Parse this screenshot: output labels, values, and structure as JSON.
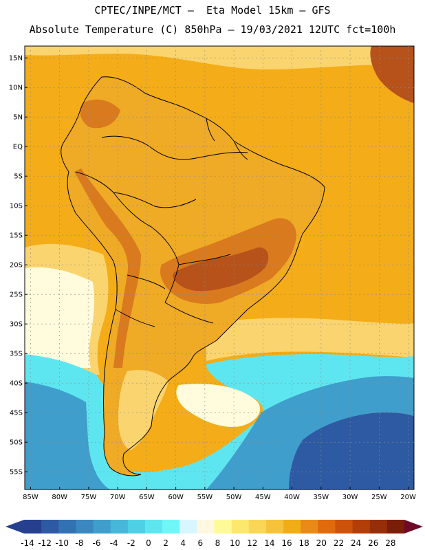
{
  "header": {
    "line1": "CPTEC/INPE/MCT –  Eta Model 15km – GFS",
    "line2": "Absolute Temperature (C) 850hPa – 19/03/2021 12UTC fct=100h"
  },
  "map": {
    "region": "South America",
    "lat_ticks": [
      "15N",
      "10N",
      "5N",
      "EQ",
      "5S",
      "10S",
      "15S",
      "20S",
      "25S",
      "30S",
      "35S",
      "40S",
      "45S",
      "50S",
      "55S"
    ],
    "lon_ticks": [
      "85W",
      "80W",
      "75W",
      "70W",
      "65W",
      "60W",
      "55W",
      "50W",
      "45W",
      "40W",
      "35W",
      "30W",
      "25W",
      "20W"
    ],
    "extent": {
      "lon_min": -86,
      "lon_max": -19,
      "lat_min": -58,
      "lat_max": 17
    }
  },
  "colorbar": {
    "labels": [
      "-14",
      "-12",
      "-10",
      "-8",
      "-6",
      "-4",
      "-2",
      "0",
      "2",
      "4",
      "6",
      "8",
      "10",
      "12",
      "14",
      "16",
      "18",
      "20",
      "22",
      "24",
      "26",
      "28"
    ],
    "colors": [
      "#26408f",
      "#2d5aa3",
      "#3372b2",
      "#3a88bf",
      "#3f9ecb",
      "#46b6d9",
      "#4ed0e6",
      "#5ee6f0",
      "#6ff7f7",
      "#d8f6ff",
      "#fff7df",
      "#fffa98",
      "#fde86e",
      "#fad657",
      "#f5c23a",
      "#f1ad16",
      "#e98a16",
      "#e06a0c",
      "#cf520a",
      "#b43e0a",
      "#962e0a",
      "#7a1e08"
    ],
    "low_color": "#26408f",
    "high_color": "#6e0a28"
  },
  "colors": {
    "ocean_warm": "#f4ac18",
    "land_base": "#efaa26",
    "hot": "#d97a1e",
    "hotter": "#b6521a",
    "mild": "#fad46e",
    "cool": "#fffbdc",
    "cold": "#5ee6f0",
    "colder": "#3f9ecb",
    "coldest": "#2d5aa3",
    "grid": "#8a8a8a"
  }
}
